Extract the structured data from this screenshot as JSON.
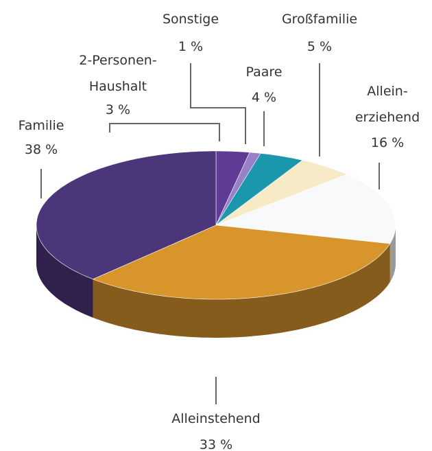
{
  "chart_data": {
    "type": "pie3d",
    "categories": [
      "2-Personen-\nHaushalt",
      "Sonstige",
      "Paare",
      "Großfamilie",
      "Allein-\nerziehend",
      "Alleinstehend",
      "Familie"
    ],
    "values": [
      3,
      1,
      4,
      5,
      16,
      33,
      38
    ],
    "value_labels": [
      "3 %",
      "1 %",
      "4 %",
      "5 %",
      "16 %",
      "33 %",
      "38 %"
    ],
    "colors": [
      "#5e3b94",
      "#9a80c6",
      "#1a97ad",
      "#f6ebc6",
      "#f8f9fb",
      "#d7952c",
      "#4b3679"
    ]
  }
}
